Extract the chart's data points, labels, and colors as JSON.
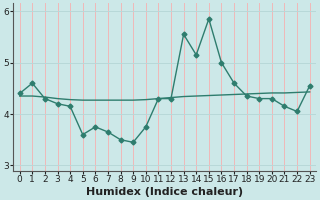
{
  "x": [
    0,
    1,
    2,
    3,
    4,
    5,
    6,
    7,
    8,
    9,
    10,
    11,
    12,
    13,
    14,
    15,
    16,
    17,
    18,
    19,
    20,
    21,
    22,
    23
  ],
  "y_main": [
    4.4,
    4.6,
    4.3,
    4.2,
    4.15,
    3.6,
    3.75,
    3.65,
    3.5,
    3.45,
    3.75,
    4.3,
    4.3,
    5.55,
    5.15,
    5.85,
    5.0,
    4.6,
    4.35,
    4.3,
    4.3,
    4.15,
    4.05,
    4.55
  ],
  "y_trend": [
    4.35,
    4.35,
    4.33,
    4.3,
    4.28,
    4.27,
    4.27,
    4.27,
    4.27,
    4.27,
    4.28,
    4.3,
    4.32,
    4.34,
    4.35,
    4.36,
    4.37,
    4.38,
    4.39,
    4.4,
    4.41,
    4.41,
    4.42,
    4.43
  ],
  "color": "#2e7d6e",
  "bg_color": "#cce8e8",
  "vgrid_color": "#f0b8b8",
  "hgrid_color": "#b8d8d8",
  "xlabel": "Humidex (Indice chaleur)",
  "ylim": [
    2.9,
    6.15
  ],
  "xlim": [
    -0.5,
    23.5
  ],
  "yticks": [
    3,
    4,
    5,
    6
  ],
  "xticks": [
    0,
    1,
    2,
    3,
    4,
    5,
    6,
    7,
    8,
    9,
    10,
    11,
    12,
    13,
    14,
    15,
    16,
    17,
    18,
    19,
    20,
    21,
    22,
    23
  ],
  "marker": "D",
  "markersize": 2.5,
  "linewidth": 1.0,
  "xlabel_fontsize": 8,
  "tick_fontsize": 6.5
}
